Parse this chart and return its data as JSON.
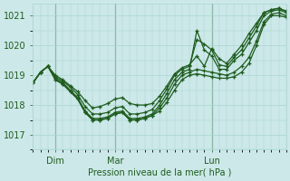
{
  "xlabel": "Pression niveau de la mer( hPa )",
  "bg_color": "#cce8e8",
  "line_color": "#1e5c1e",
  "grid_color": "#aad4d4",
  "ylim": [
    1016.5,
    1021.4
  ],
  "xlim": [
    0,
    34
  ],
  "series": [
    [
      1018.75,
      1019.1,
      1019.3,
      1018.85,
      1018.7,
      1018.45,
      1018.2,
      1017.75,
      1017.5,
      1017.5,
      1017.55,
      1017.7,
      1017.75,
      1017.5,
      1017.5,
      1017.55,
      1017.65,
      1017.8,
      1018.1,
      1018.5,
      1018.85,
      1019.0,
      1019.05,
      1019.0,
      1018.95,
      1018.9,
      1018.9,
      1018.95,
      1019.1,
      1019.4,
      1020.0,
      1020.7,
      1021.0,
      1021.0,
      1020.95
    ],
    [
      1018.75,
      1019.1,
      1019.3,
      1018.85,
      1018.7,
      1018.45,
      1018.2,
      1017.75,
      1017.5,
      1017.5,
      1017.55,
      1017.7,
      1017.75,
      1017.5,
      1017.5,
      1017.55,
      1017.65,
      1017.9,
      1018.25,
      1018.7,
      1019.0,
      1019.1,
      1019.2,
      1019.15,
      1019.1,
      1019.05,
      1019.0,
      1019.1,
      1019.3,
      1019.6,
      1020.15,
      1020.8,
      1021.05,
      1021.1,
      1021.0
    ],
    [
      1018.75,
      1019.1,
      1019.3,
      1018.9,
      1018.75,
      1018.5,
      1018.25,
      1017.8,
      1017.55,
      1017.55,
      1017.6,
      1017.75,
      1017.8,
      1017.55,
      1017.55,
      1017.6,
      1017.7,
      1018.0,
      1018.4,
      1018.85,
      1019.1,
      1019.2,
      1020.5,
      1019.85,
      1019.65,
      1019.2,
      1019.2,
      1019.5,
      1019.7,
      1020.1,
      1020.5,
      1021.0,
      1021.15,
      1021.2,
      1021.1
    ],
    [
      1018.75,
      1019.1,
      1019.3,
      1018.95,
      1018.8,
      1018.6,
      1018.35,
      1017.95,
      1017.7,
      1017.7,
      1017.75,
      1017.9,
      1017.95,
      1017.7,
      1017.7,
      1017.75,
      1017.85,
      1018.15,
      1018.55,
      1019.0,
      1019.2,
      1019.3,
      1020.2,
      1020.05,
      1019.85,
      1019.35,
      1019.3,
      1019.6,
      1019.85,
      1020.25,
      1020.65,
      1021.1,
      1021.2,
      1021.25,
      1021.15
    ],
    [
      1018.75,
      1019.1,
      1019.3,
      1019.0,
      1018.85,
      1018.65,
      1018.45,
      1018.15,
      1017.9,
      1017.95,
      1018.05,
      1018.2,
      1018.25,
      1018.05,
      1018.0,
      1018.0,
      1018.05,
      1018.3,
      1018.65,
      1019.05,
      1019.25,
      1019.35,
      1019.65,
      1019.3,
      1019.9,
      1019.55,
      1019.4,
      1019.7,
      1020.0,
      1020.4,
      1020.75,
      1021.1,
      1021.2,
      1021.25,
      1021.15
    ]
  ],
  "day_positions": [
    3,
    11,
    24
  ],
  "day_labels": [
    "Dim",
    "Mar",
    "Lun"
  ],
  "yticks": [
    1017,
    1018,
    1019,
    1020,
    1021
  ],
  "n_points": 35
}
